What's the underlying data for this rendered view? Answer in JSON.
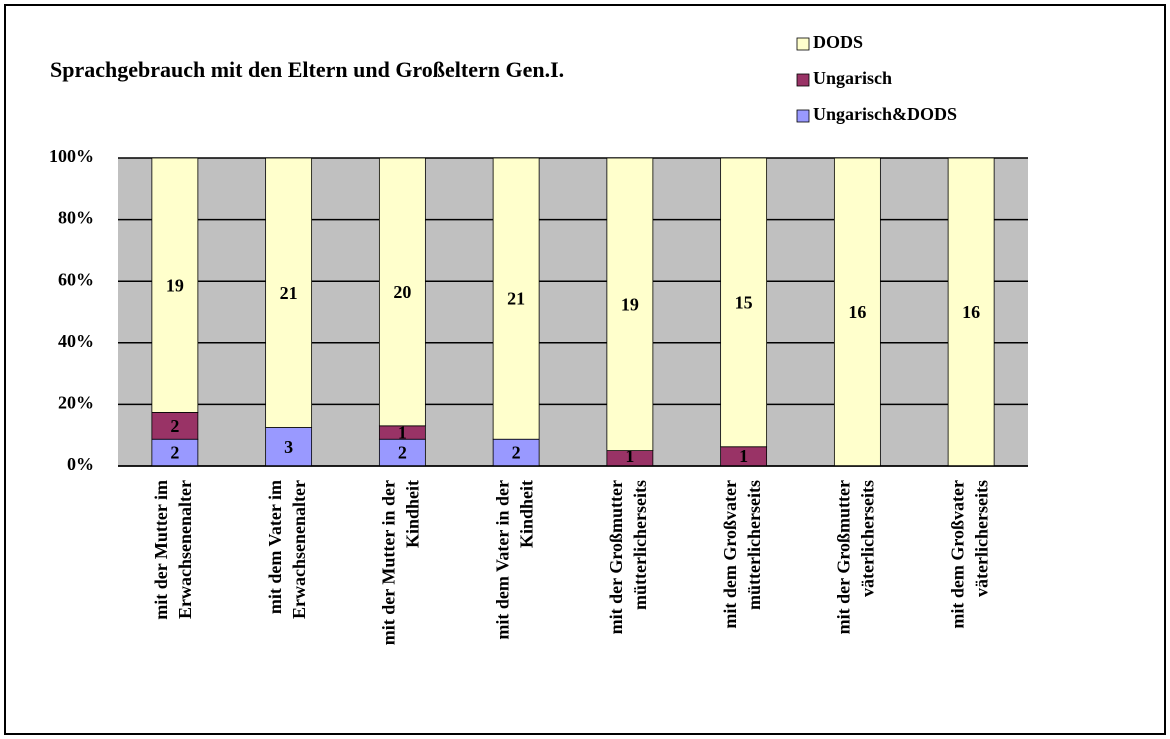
{
  "chart_data": {
    "type": "bar",
    "stacking": "percent",
    "title": "Sprachgebrauch mit den Eltern und Großeltern Gen.I.",
    "categories": [
      [
        "mit der Mutter im",
        "Erwachsenenalter"
      ],
      [
        "mit dem Vater im",
        "Erwachsenenalter"
      ],
      [
        "mit der Mutter in der",
        "Kindheit"
      ],
      [
        "mit dem Vater in der",
        "Kindheit"
      ],
      [
        "mit der Großmutter",
        "mütterlicherseits"
      ],
      [
        "mit dem Großvater",
        "mütterlicherseits"
      ],
      [
        "mit der Großmutter",
        "väterlicherseits"
      ],
      [
        "mit dem Großvater",
        "väterlicherseits"
      ]
    ],
    "series": [
      {
        "name": "Ungarisch&DODS",
        "color": "#9999ff",
        "values": [
          2,
          3,
          2,
          2,
          null,
          null,
          null,
          null
        ]
      },
      {
        "name": "Ungarisch",
        "color": "#993366",
        "values": [
          2,
          null,
          1,
          null,
          1,
          1,
          null,
          null
        ]
      },
      {
        "name": "DODS",
        "color": "#ffffcc",
        "values": [
          19,
          21,
          20,
          21,
          19,
          15,
          16,
          16
        ]
      }
    ],
    "ylim": [
      0,
      100
    ],
    "yticks": [
      {
        "value": 0,
        "label": "0%"
      },
      {
        "value": 20,
        "label": "20%"
      },
      {
        "value": 40,
        "label": "40%"
      },
      {
        "value": 60,
        "label": "60%"
      },
      {
        "value": 80,
        "label": "80%"
      },
      {
        "value": 100,
        "label": "100%"
      }
    ],
    "grid": true,
    "legend": "top-right"
  }
}
